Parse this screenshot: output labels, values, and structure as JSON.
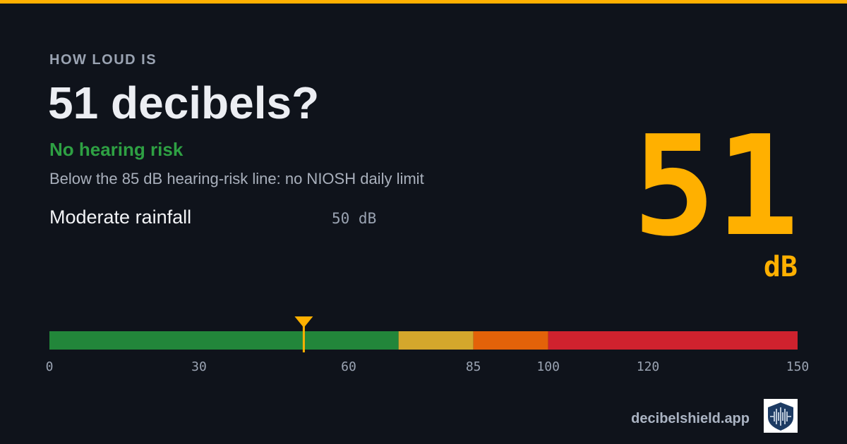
{
  "header": {
    "kicker": "HOW LOUD IS",
    "title": "51 decibels?"
  },
  "risk": {
    "label": "No hearing risk",
    "description": "Below the 85 dB hearing-risk line: no NIOSH daily limit"
  },
  "comparison": {
    "name": "Moderate rainfall",
    "level": "50 dB"
  },
  "reading": {
    "value": 51,
    "unit": "dB"
  },
  "scale": {
    "min": 0,
    "max": 150,
    "ticks": [
      0,
      30,
      60,
      85,
      100,
      120,
      150
    ],
    "segments": [
      {
        "from": 0,
        "to": 70,
        "color": "#22863a"
      },
      {
        "from": 70,
        "to": 85,
        "color": "#d4a72c"
      },
      {
        "from": 85,
        "to": 100,
        "color": "#e36209"
      },
      {
        "from": 100,
        "to": 150,
        "color": "#cf222e"
      }
    ],
    "marker_color": "#ffb000"
  },
  "footer": {
    "site": "decibelshield.app"
  }
}
